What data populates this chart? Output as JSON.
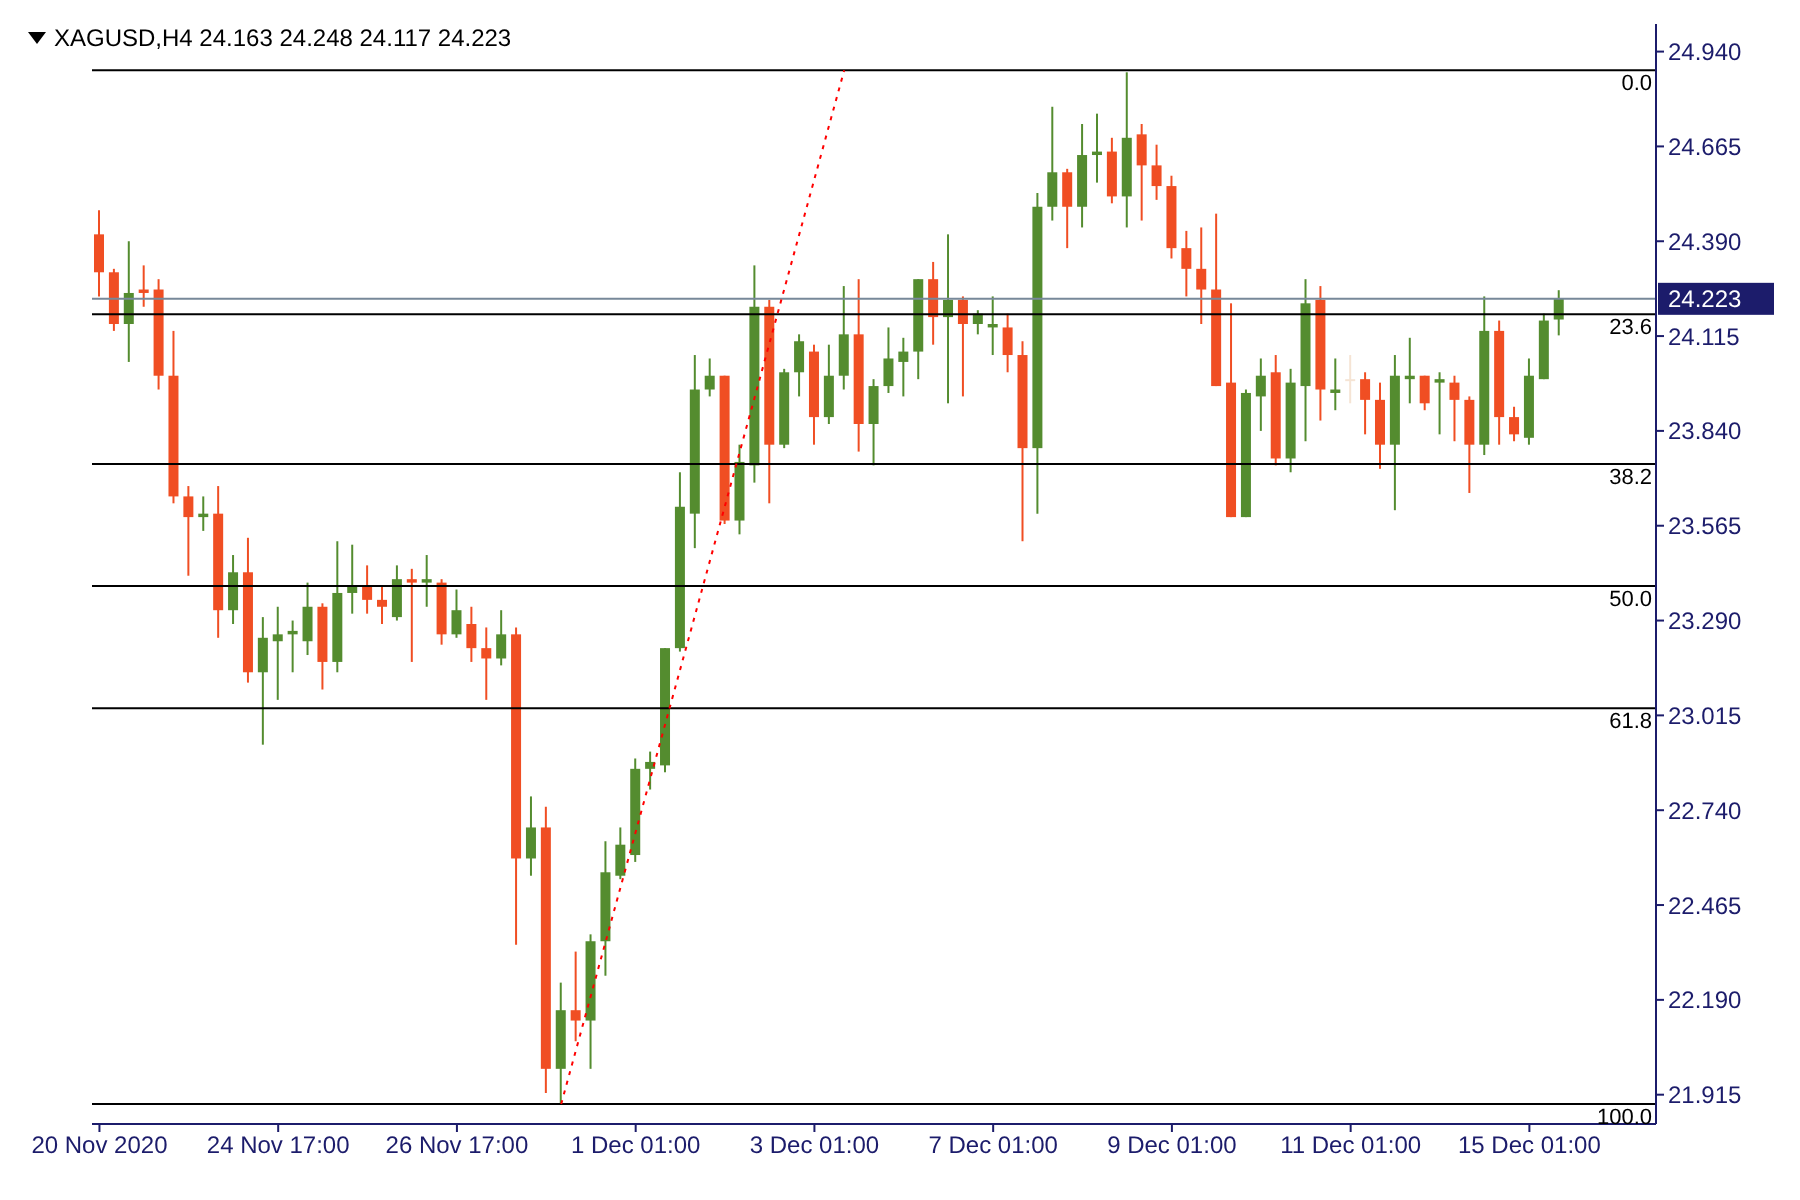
{
  "chart_data": {
    "type": "candlestick",
    "title": "XAGUSD,H4  24.163 24.248 24.117 24.223",
    "categories": [
      "20 Nov 2020",
      null,
      null,
      null,
      null,
      null,
      null,
      null,
      null,
      null,
      null,
      null,
      "24 Nov 17:00",
      null,
      null,
      null,
      null,
      null,
      null,
      null,
      null,
      null,
      null,
      null,
      "26 Nov 17:00",
      null,
      null,
      null,
      null,
      null,
      null,
      null,
      null,
      null,
      null,
      null,
      "1 Dec 01:00",
      null,
      null,
      null,
      null,
      null,
      null,
      null,
      null,
      null,
      null,
      null,
      "3 Dec 01:00",
      null,
      null,
      null,
      null,
      null,
      null,
      null,
      null,
      null,
      null,
      null,
      "7 Dec 01:00",
      null,
      null,
      null,
      null,
      null,
      null,
      null,
      null,
      null,
      null,
      null,
      "9 Dec 01:00",
      null,
      null,
      null,
      null,
      null,
      null,
      null,
      null,
      null,
      null,
      null,
      "11 Dec 01:00",
      null,
      null,
      null,
      null,
      null,
      null,
      null,
      null,
      null,
      null,
      null,
      "15 Dec 01:00",
      null,
      null
    ],
    "ohlc": [
      [
        24.41,
        24.48,
        24.23,
        24.3
      ],
      [
        24.3,
        24.31,
        24.13,
        24.15
      ],
      [
        24.15,
        24.39,
        24.04,
        24.24
      ],
      [
        24.25,
        24.32,
        24.2,
        24.24
      ],
      [
        24.25,
        24.28,
        23.96,
        24.0
      ],
      [
        24.0,
        24.13,
        23.63,
        23.65
      ],
      [
        23.65,
        23.68,
        23.42,
        23.59
      ],
      [
        23.59,
        23.65,
        23.55,
        23.6
      ],
      [
        23.6,
        23.68,
        23.24,
        23.32
      ],
      [
        23.32,
        23.48,
        23.28,
        23.43
      ],
      [
        23.43,
        23.53,
        23.11,
        23.14
      ],
      [
        23.14,
        23.3,
        22.93,
        23.24
      ],
      [
        23.23,
        23.33,
        23.06,
        23.25
      ],
      [
        23.25,
        23.29,
        23.14,
        23.26
      ],
      [
        23.23,
        23.4,
        23.19,
        23.33
      ],
      [
        23.33,
        23.34,
        23.09,
        23.17
      ],
      [
        23.17,
        23.52,
        23.14,
        23.37
      ],
      [
        23.37,
        23.51,
        23.31,
        23.39
      ],
      [
        23.39,
        23.45,
        23.31,
        23.35
      ],
      [
        23.35,
        23.39,
        23.28,
        23.33
      ],
      [
        23.3,
        23.45,
        23.29,
        23.41
      ],
      [
        23.41,
        23.44,
        23.17,
        23.4
      ],
      [
        23.4,
        23.48,
        23.33,
        23.41
      ],
      [
        23.4,
        23.41,
        23.22,
        23.25
      ],
      [
        23.25,
        23.38,
        23.24,
        23.32
      ],
      [
        23.28,
        23.33,
        23.17,
        23.21
      ],
      [
        23.21,
        23.27,
        23.06,
        23.18
      ],
      [
        23.18,
        23.32,
        23.16,
        23.25
      ],
      [
        23.25,
        23.27,
        22.35,
        22.6
      ],
      [
        22.6,
        22.78,
        22.55,
        22.69
      ],
      [
        22.69,
        22.75,
        21.92,
        21.99
      ],
      [
        21.99,
        22.24,
        21.89,
        22.16
      ],
      [
        22.16,
        22.33,
        22.07,
        22.13
      ],
      [
        22.13,
        22.38,
        21.99,
        22.36
      ],
      [
        22.36,
        22.65,
        22.26,
        22.56
      ],
      [
        22.55,
        22.69,
        22.54,
        22.64
      ],
      [
        22.61,
        22.89,
        22.59,
        22.86
      ],
      [
        22.86,
        22.91,
        22.8,
        22.88
      ],
      [
        22.87,
        23.21,
        22.85,
        23.21
      ],
      [
        23.21,
        23.72,
        23.2,
        23.62
      ],
      [
        23.6,
        24.06,
        23.5,
        23.96
      ],
      [
        23.96,
        24.05,
        23.94,
        24.0
      ],
      [
        24.0,
        24.0,
        23.57,
        23.58
      ],
      [
        23.58,
        23.8,
        23.54,
        23.75
      ],
      [
        23.74,
        24.32,
        23.69,
        24.2
      ],
      [
        24.2,
        24.22,
        23.63,
        23.8
      ],
      [
        23.8,
        24.02,
        23.79,
        24.01
      ],
      [
        24.01,
        24.12,
        23.94,
        24.1
      ],
      [
        24.07,
        24.09,
        23.8,
        23.88
      ],
      [
        23.88,
        24.09,
        23.86,
        24.0
      ],
      [
        24.0,
        24.26,
        23.96,
        24.12
      ],
      [
        24.12,
        24.28,
        23.78,
        23.86
      ],
      [
        23.86,
        23.99,
        23.74,
        23.97
      ],
      [
        23.97,
        24.14,
        23.95,
        24.05
      ],
      [
        24.04,
        24.11,
        23.94,
        24.07
      ],
      [
        24.07,
        24.28,
        23.99,
        24.28
      ],
      [
        24.28,
        24.33,
        24.09,
        24.17
      ],
      [
        24.17,
        24.41,
        23.92,
        24.22
      ],
      [
        24.22,
        24.23,
        23.94,
        24.15
      ],
      [
        24.15,
        24.19,
        24.12,
        24.18
      ],
      [
        24.14,
        24.23,
        24.06,
        24.15
      ],
      [
        24.14,
        24.18,
        24.01,
        24.06
      ],
      [
        24.06,
        24.1,
        23.52,
        23.79
      ],
      [
        23.79,
        24.53,
        23.6,
        24.49
      ],
      [
        24.49,
        24.78,
        24.45,
        24.59
      ],
      [
        24.59,
        24.6,
        24.37,
        24.49
      ],
      [
        24.49,
        24.73,
        24.43,
        24.64
      ],
      [
        24.64,
        24.76,
        24.56,
        24.65
      ],
      [
        24.65,
        24.69,
        24.5,
        24.52
      ],
      [
        24.52,
        24.88,
        24.43,
        24.69
      ],
      [
        24.7,
        24.73,
        24.45,
        24.61
      ],
      [
        24.61,
        24.67,
        24.51,
        24.55
      ],
      [
        24.55,
        24.58,
        24.34,
        24.37
      ],
      [
        24.37,
        24.42,
        24.23,
        24.31
      ],
      [
        24.31,
        24.43,
        24.15,
        24.25
      ],
      [
        24.25,
        24.47,
        23.97,
        23.97
      ],
      [
        23.98,
        24.21,
        23.59,
        23.59
      ],
      [
        23.59,
        23.96,
        23.59,
        23.95
      ],
      [
        23.94,
        24.05,
        23.84,
        24.0
      ],
      [
        24.01,
        24.06,
        23.74,
        23.76
      ],
      [
        23.76,
        24.02,
        23.72,
        23.98
      ],
      [
        23.97,
        24.28,
        23.81,
        24.21
      ],
      [
        24.22,
        24.26,
        23.87,
        23.96
      ],
      [
        23.95,
        24.05,
        23.9,
        23.96
      ],
      [
        23.99,
        24.06,
        23.92,
        23.99
      ],
      [
        23.99,
        24.01,
        23.83,
        23.93
      ],
      [
        23.93,
        23.98,
        23.73,
        23.8
      ],
      [
        23.8,
        24.06,
        23.61,
        24.0
      ],
      [
        23.99,
        24.11,
        23.92,
        24.0
      ],
      [
        24.0,
        24.0,
        23.9,
        23.92
      ],
      [
        23.98,
        24.01,
        23.83,
        23.99
      ],
      [
        23.98,
        24.0,
        23.81,
        23.93
      ],
      [
        23.93,
        23.94,
        23.66,
        23.8
      ],
      [
        23.8,
        24.23,
        23.77,
        24.13
      ],
      [
        24.13,
        24.16,
        23.8,
        23.88
      ],
      [
        23.88,
        23.91,
        23.81,
        23.83
      ],
      [
        23.82,
        24.05,
        23.8,
        24.0
      ],
      [
        23.99,
        24.18,
        23.99,
        24.16
      ],
      [
        24.163,
        24.248,
        24.117,
        24.223
      ]
    ],
    "colors": [
      "#f04e23",
      "#f04e23",
      "#548c2f",
      "#f04e23",
      "#f04e23",
      "#f04e23",
      "#f04e23",
      "#548c2f",
      "#f04e23",
      "#548c2f",
      "#f04e23",
      "#548c2f",
      "#548c2f",
      "#548c2f",
      "#548c2f",
      "#f04e23",
      "#548c2f",
      "#548c2f",
      "#f04e23",
      "#f04e23",
      "#548c2f",
      "#f04e23",
      "#548c2f",
      "#f04e23",
      "#548c2f",
      "#f04e23",
      "#f04e23",
      "#548c2f",
      "#f04e23",
      "#548c2f",
      "#f04e23",
      "#548c2f",
      "#f04e23",
      "#548c2f",
      "#548c2f",
      "#548c2f",
      "#548c2f",
      "#548c2f",
      "#548c2f",
      "#548c2f",
      "#548c2f",
      "#548c2f",
      "#f04e23",
      "#548c2f",
      "#548c2f",
      "#f04e23",
      "#548c2f",
      "#548c2f",
      "#f04e23",
      "#548c2f",
      "#548c2f",
      "#f04e23",
      "#548c2f",
      "#548c2f",
      "#548c2f",
      "#548c2f",
      "#f04e23",
      "#548c2f",
      "#f04e23",
      "#548c2f",
      "#548c2f",
      "#f04e23",
      "#f04e23",
      "#548c2f",
      "#548c2f",
      "#f04e23",
      "#548c2f",
      "#548c2f",
      "#f04e23",
      "#548c2f",
      "#f04e23",
      "#f04e23",
      "#f04e23",
      "#f04e23",
      "#f04e23",
      "#f04e23",
      "#f04e23",
      "#548c2f",
      "#548c2f",
      "#f04e23",
      "#548c2f",
      "#548c2f",
      "#f04e23",
      "#548c2f",
      "#f5e4d4",
      "#f04e23",
      "#f04e23",
      "#548c2f",
      "#548c2f",
      "#f04e23",
      "#548c2f",
      "#f04e23",
      "#f04e23",
      "#548c2f",
      "#f04e23",
      "#f04e23",
      "#548c2f",
      "#548c2f",
      "#548c2f"
    ],
    "series": [
      {
        "type": "line",
        "color": "#ff0000",
        "line_style": "dotted",
        "values": [
          null,
          null,
          null,
          null,
          null,
          null,
          null,
          null,
          null,
          null,
          null,
          null,
          null,
          null,
          null,
          null,
          null,
          null,
          null,
          null,
          null,
          null,
          null,
          null,
          null,
          null,
          null,
          null,
          null,
          null,
          null,
          21.888,
          null,
          null,
          null,
          null,
          null,
          null,
          null,
          null,
          null,
          null,
          null,
          null,
          null,
          null,
          null,
          null,
          null,
          null,
          24.886,
          null,
          null,
          null,
          null,
          null,
          null,
          null,
          null,
          null,
          null,
          null,
          null,
          null,
          null,
          null,
          null,
          null,
          null,
          null,
          null,
          null,
          null,
          null,
          null,
          null,
          null,
          null,
          null,
          null,
          null,
          null,
          null,
          null,
          null,
          null,
          null,
          null,
          null,
          null,
          null,
          null,
          null,
          null,
          null,
          null,
          null,
          null,
          null
        ]
      }
    ],
    "ylim": [
      21.83,
      25.02
    ],
    "yticks": [
      {
        "value": 21.915,
        "label": "21.915"
      },
      {
        "value": 22.19,
        "label": "22.190"
      },
      {
        "value": 22.465,
        "label": "22.465"
      },
      {
        "value": 22.74,
        "label": "22.740"
      },
      {
        "value": 23.015,
        "label": "23.015"
      },
      {
        "value": 23.29,
        "label": "23.290"
      },
      {
        "value": 23.565,
        "label": "23.565"
      },
      {
        "value": 23.84,
        "label": "23.840"
      },
      {
        "value": 24.115,
        "label": "24.115"
      },
      {
        "value": 24.39,
        "label": "24.390"
      },
      {
        "value": 24.665,
        "label": "24.665"
      },
      {
        "value": 24.94,
        "label": "24.940"
      }
    ],
    "annotations": [
      {
        "text": "0.0",
        "y": 24.886
      },
      {
        "text": "23.6",
        "y": 24.178
      },
      {
        "text": "38.2",
        "y": 23.744
      },
      {
        "text": "50.0",
        "y": 23.39
      },
      {
        "text": "61.8",
        "y": 23.036
      },
      {
        "text": "100.0",
        "y": 21.888
      }
    ],
    "ref_lines": [
      {
        "axis": "y",
        "value": 24.886,
        "color": "#000000"
      },
      {
        "axis": "y",
        "value": 24.178,
        "color": "#000000"
      },
      {
        "axis": "y",
        "value": 23.744,
        "color": "#000000"
      },
      {
        "axis": "y",
        "value": 23.39,
        "color": "#000000"
      },
      {
        "axis": "y",
        "value": 23.036,
        "color": "#000000"
      },
      {
        "axis": "y",
        "value": 21.888,
        "color": "#000000"
      },
      {
        "axis": "y",
        "value": 24.223,
        "label": "24.223",
        "color": "#778899"
      }
    ],
    "grid": false,
    "legend": false
  }
}
